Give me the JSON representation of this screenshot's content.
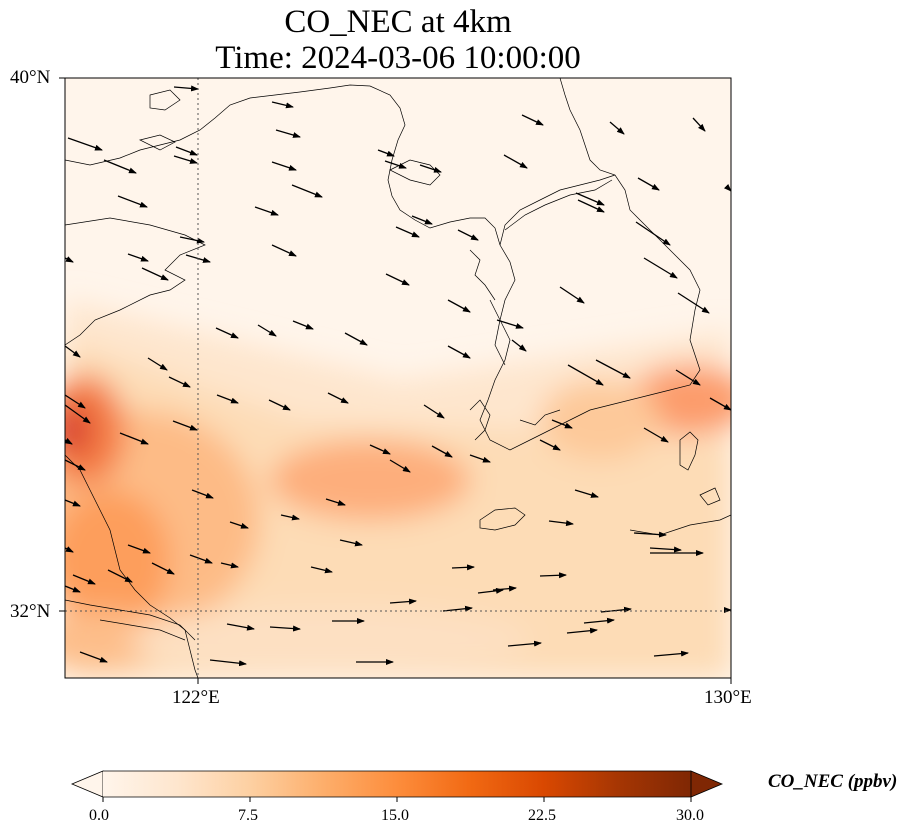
{
  "title": {
    "line1": "CO_NEC at 4km",
    "line2": "Time: 2024-03-06 10:00:00"
  },
  "axes": {
    "lon_ticks": [
      "122°E",
      "130°E"
    ],
    "lat_ticks": [
      "40°N",
      "32°N"
    ],
    "lon_range_deg": [
      120,
      130
    ],
    "lat_range_deg": [
      31,
      40
    ],
    "gridlines": "dotted at 122°E and 32°N"
  },
  "colorbar": {
    "label": "CO_NEC (ppbv)",
    "ticks": [
      "0.0",
      "7.5",
      "15.0",
      "22.5",
      "30.0"
    ],
    "range": [
      0,
      30
    ],
    "extend": "both",
    "colormap": [
      "#fff5eb",
      "#fee6ce",
      "#fdd0a2",
      "#fdae6b",
      "#fd8d3c",
      "#f16913",
      "#d94801",
      "#a63603",
      "#7f2704"
    ]
  },
  "colors": {
    "background": "#fff5eb",
    "arrow": "#000000",
    "coastline": "#000000"
  }
}
